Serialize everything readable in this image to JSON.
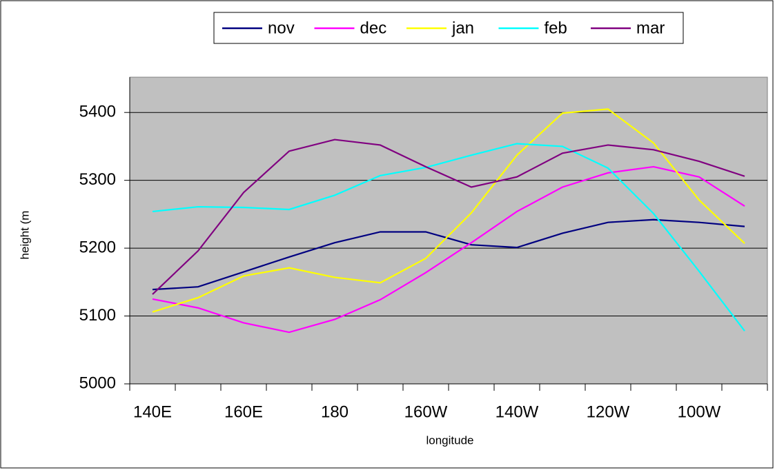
{
  "chart_data": {
    "type": "line",
    "x_label": "longitude",
    "y_label": "height (m",
    "categories": [
      "140E",
      null,
      "160E",
      null,
      "180",
      null,
      "160W",
      null,
      "140W",
      null,
      "120W",
      null,
      "100W",
      null
    ],
    "series": [
      {
        "name": "nov",
        "color": "#000080",
        "values": [
          5139,
          5143,
          5165,
          5187,
          5208,
          5224,
          5224,
          5205,
          5201,
          5222,
          5238,
          5242,
          5238,
          5232
        ]
      },
      {
        "name": "dec",
        "color": "#ff00ff",
        "values": [
          5125,
          5112,
          5090,
          5076,
          5095,
          5124,
          5164,
          5208,
          5254,
          5290,
          5311,
          5320,
          5305,
          5262
        ]
      },
      {
        "name": "jan",
        "color": "#ffff00",
        "values": [
          5106,
          5127,
          5159,
          5171,
          5157,
          5149,
          5185,
          5252,
          5337,
          5399,
          5405,
          5355,
          5271,
          5207
        ]
      },
      {
        "name": "feb",
        "color": "#00ffff",
        "values": [
          5254,
          5261,
          5260,
          5257,
          5278,
          5307,
          5319,
          5337,
          5354,
          5350,
          5318,
          5251,
          5166,
          5078
        ]
      },
      {
        "name": "mar",
        "color": "#800080",
        "values": [
          5132,
          5196,
          5282,
          5343,
          5360,
          5352,
          5320,
          5290,
          5305,
          5340,
          5352,
          5345,
          5328,
          5306
        ]
      }
    ],
    "ylim": [
      5000,
      5452
    ],
    "yticks": [
      5000,
      5100,
      5200,
      5300,
      5400
    ],
    "grid": true,
    "legend": "top"
  }
}
